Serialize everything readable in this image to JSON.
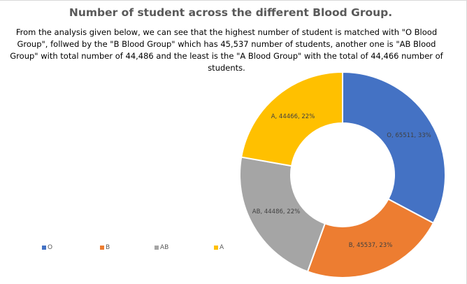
{
  "chart_data": {
    "type": "pie",
    "variant": "donut",
    "title": "Number of student across the different Blood Group.",
    "subtitle": "From the analysis given below, we can see that the highest number of student is matched with \"O Blood Group\", follwed by the \"B Blood Group\" which has 45,537 number of students, another one is \"AB Blood Group\" with total number of 44,486 and the least is the \"A Blood Group\" with the total of 44,466 number of students.",
    "categories": [
      "O",
      "B",
      "AB",
      "A"
    ],
    "values": [
      65511,
      45537,
      44486,
      44466
    ],
    "percent_labels": [
      "33%",
      "23%",
      "22%",
      "22%"
    ],
    "data_labels": [
      "O, 65511, 33%",
      "B, 45537, 23%",
      "AB, 44486, 22%",
      "A, 44466, 22%"
    ],
    "colors": [
      "#4472c4",
      "#ed7d31",
      "#a5a5a5",
      "#ffc000"
    ],
    "legend": {
      "position": "bottom-left",
      "items": [
        "O",
        "B",
        "AB",
        "A"
      ]
    }
  }
}
